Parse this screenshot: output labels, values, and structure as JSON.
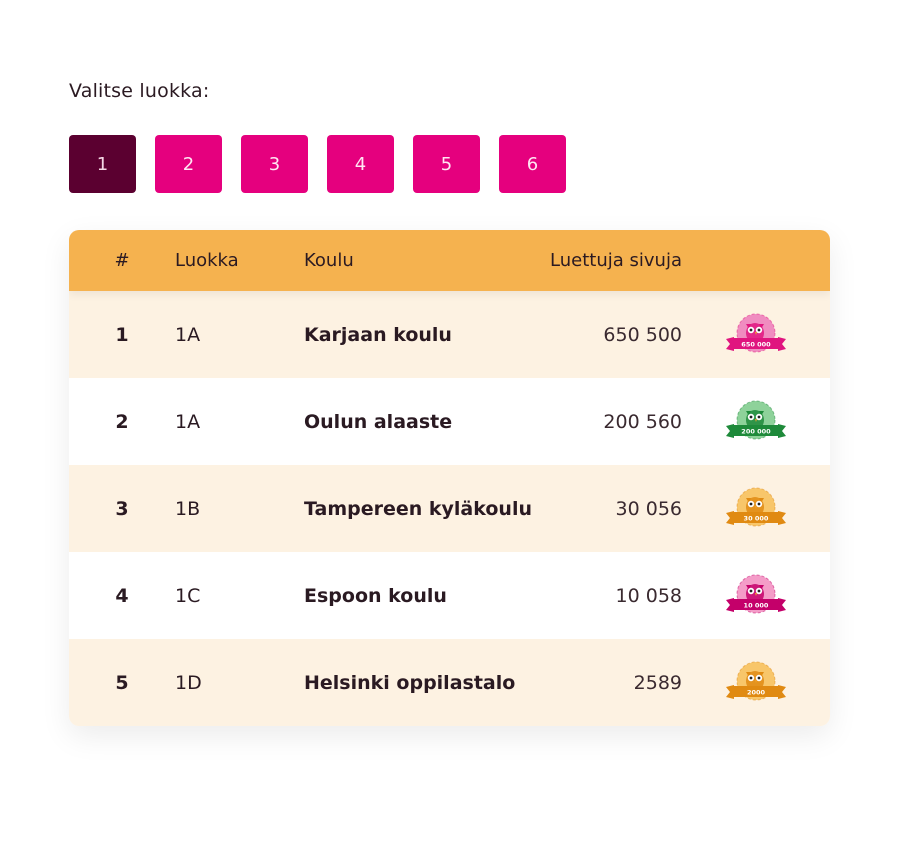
{
  "prompt": "Valitse luokka:",
  "grades": [
    "1",
    "2",
    "3",
    "4",
    "5",
    "6"
  ],
  "active_grade": "1",
  "colors": {
    "grade_button": "#e5007e",
    "grade_active": "#5b0030",
    "header": "#f5b24f",
    "row_alt": "#fdf2e2"
  },
  "table": {
    "headers": {
      "rank": "#",
      "class": "Luokka",
      "school": "Koulu",
      "pages": "Luettuja sivuja"
    },
    "rows": [
      {
        "rank": "1",
        "class": "1A",
        "school": "Karjaan koulu",
        "pages": "650 500",
        "badge": {
          "icon": "owl-badge-icon",
          "label": "650 000",
          "ribbon": "#e0157f",
          "disc": "#f08cc0"
        }
      },
      {
        "rank": "2",
        "class": "1A",
        "school": "Oulun alaaste",
        "pages": "200 560",
        "badge": {
          "icon": "owl-badge-icon",
          "label": "200 000",
          "ribbon": "#1e8a3a",
          "disc": "#8ed29a"
        }
      },
      {
        "rank": "3",
        "class": "1B",
        "school": "Tampereen kyläkoulu",
        "pages": "30 056",
        "badge": {
          "icon": "owl-badge-icon",
          "label": "30 000",
          "ribbon": "#e08a12",
          "disc": "#f8c66a"
        }
      },
      {
        "rank": "4",
        "class": "1C",
        "school": "Espoon koulu",
        "pages": "10 058",
        "badge": {
          "icon": "owl-badge-icon",
          "label": "10 000",
          "ribbon": "#c4006a",
          "disc": "#f49cc8"
        }
      },
      {
        "rank": "5",
        "class": "1D",
        "school": "Helsinki oppilastalo",
        "pages": "2589",
        "badge": {
          "icon": "owl-badge-icon",
          "label": "2000",
          "ribbon": "#e08a12",
          "disc": "#f8c66a"
        }
      }
    ]
  }
}
